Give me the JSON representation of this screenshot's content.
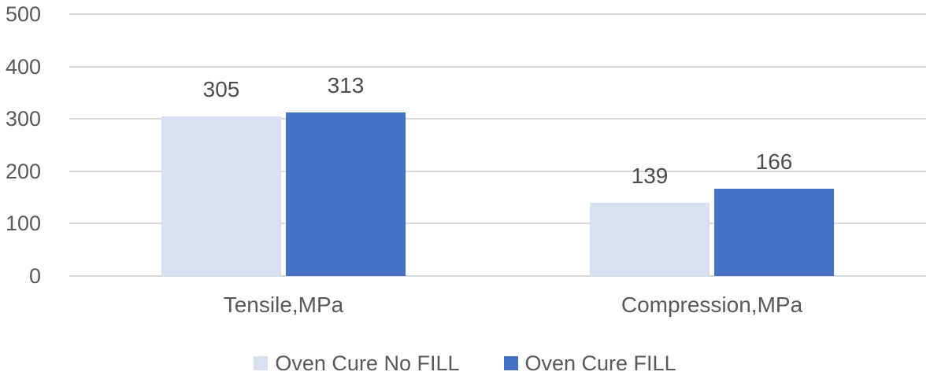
{
  "chart_data": {
    "type": "bar",
    "title": "",
    "xlabel": "",
    "ylabel": "",
    "categories": [
      "Tensile,MPa",
      "Compression,MPa"
    ],
    "series": [
      {
        "name": "Oven Cure No FILL",
        "color": "#d9e0f2",
        "values": [
          305,
          139
        ]
      },
      {
        "name": "Oven Cure FILL",
        "color": "#4472c4",
        "values": [
          313,
          166
        ]
      }
    ],
    "ylim": [
      0,
      500
    ],
    "yticks": [
      0,
      100,
      200,
      300,
      400,
      500
    ],
    "grid": true,
    "legend_position": "bottom",
    "colors": {
      "gridline": "#d8d8d8",
      "axis_text": "#595959",
      "data_label_text": "#4d4d4d",
      "category_text": "#595959",
      "legend_text": "#595959",
      "background": "#ffffff"
    }
  }
}
